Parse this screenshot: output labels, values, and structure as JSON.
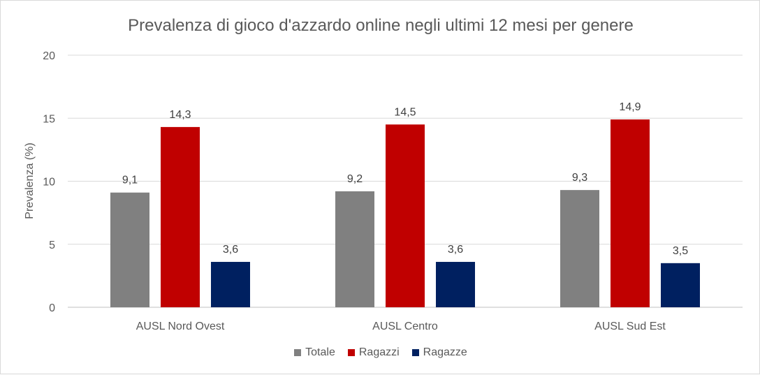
{
  "chart_data": {
    "type": "bar",
    "title": "Prevalenza di gioco d'azzardo online negli ultimi 12 mesi per genere",
    "ylabel": "Prevalenza (%)",
    "xlabel": "",
    "categories": [
      "AUSL Nord Ovest",
      "AUSL Centro",
      "AUSL Sud Est"
    ],
    "series": [
      {
        "name": "Totale",
        "color": "#808080",
        "values": [
          9.1,
          9.2,
          9.3
        ],
        "labels": [
          "9,1",
          "9,2",
          "9,3"
        ]
      },
      {
        "name": "Ragazzi",
        "color": "#c00000",
        "values": [
          14.3,
          14.5,
          14.9
        ],
        "labels": [
          "14,3",
          "14,5",
          "14,9"
        ]
      },
      {
        "name": "Ragazze",
        "color": "#002060",
        "values": [
          3.6,
          3.6,
          3.5
        ],
        "labels": [
          "3,6",
          "3,6",
          "3,5"
        ]
      }
    ],
    "ylim": [
      0,
      20
    ],
    "yticks": [
      0,
      5,
      10,
      15,
      20
    ],
    "grid": true,
    "legend_position": "bottom"
  }
}
